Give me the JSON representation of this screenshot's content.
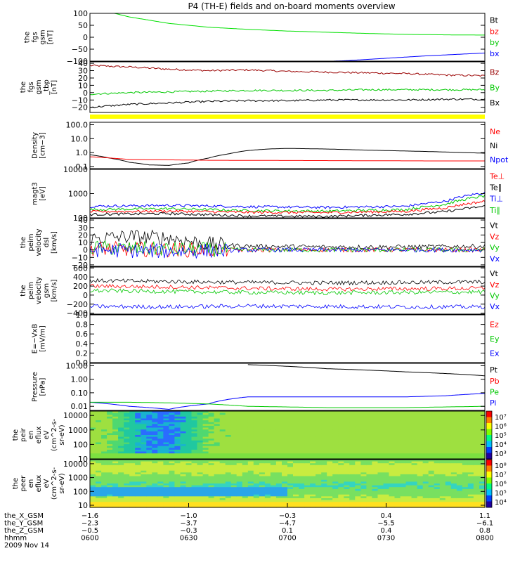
{
  "title": "P4 (TH-E) fields and on-board moments overview",
  "colors": {
    "black": "#000000",
    "red": "#ff0000",
    "dark_red": "#9a0000",
    "green": "#00c800",
    "bright_green": "#00e000",
    "blue": "#0000ff",
    "yellow": "#ffff00"
  },
  "chart_data": [
    {
      "type": "line",
      "ylabel": [
        "the",
        "fgs",
        "gsm",
        "[nT]"
      ],
      "yticks": [
        "100",
        "50",
        "0",
        "−50",
        "−100"
      ],
      "ylim": [
        -100,
        100
      ],
      "legend": [
        {
          "text": "Bt",
          "color": "#000000"
        },
        {
          "text": "bz",
          "color": "#ff0000"
        },
        {
          "text": "by",
          "color": "#00c800"
        },
        {
          "text": "bx",
          "color": "#0000ff"
        }
      ],
      "series": [
        {
          "name": "by",
          "color": "#00e000",
          "x": [
            0,
            0.1,
            0.2,
            0.3,
            0.4,
            0.5,
            0.6,
            0.7,
            0.8,
            0.9,
            1.0
          ],
          "y": [
            125,
            85,
            58,
            42,
            33,
            26,
            21,
            16,
            12,
            10,
            9
          ]
        },
        {
          "name": "bx",
          "color": "#0000ff",
          "x": [
            0.58,
            0.65,
            0.75,
            0.85,
            0.95,
            1.0
          ],
          "y": [
            -102,
            -98,
            -88,
            -78,
            -70,
            -66
          ]
        }
      ]
    },
    {
      "type": "line",
      "ylabel": [
        "the",
        "fgs",
        "gsm",
        "_tbp",
        "[nT]"
      ],
      "yticks": [
        "40",
        "30",
        "20",
        "10",
        "0",
        "−10",
        "−20"
      ],
      "ylim": [
        -27,
        42
      ],
      "legend": [
        {
          "text": "Bz",
          "color": "#9a0000"
        },
        {
          "text": "By",
          "color": "#00c800"
        },
        {
          "text": "Bx",
          "color": "#000000"
        }
      ],
      "series": [
        {
          "name": "Bz",
          "color": "#9a0000",
          "x": [
            0,
            0.1,
            0.2,
            0.3,
            0.4,
            0.5,
            0.6,
            0.7,
            0.8,
            0.9,
            1.0
          ],
          "y": [
            37,
            35,
            32,
            30,
            31,
            29,
            28,
            27,
            26,
            24,
            23
          ]
        },
        {
          "name": "By",
          "color": "#00c800",
          "x": [
            0,
            0.1,
            0.2,
            0.3,
            0.4,
            0.5,
            0.6,
            0.7,
            0.8,
            0.9,
            1.0
          ],
          "y": [
            -2,
            0,
            1,
            2,
            3,
            3,
            3,
            4,
            4,
            4,
            4
          ]
        },
        {
          "name": "Bx",
          "color": "#000000",
          "x": [
            0,
            0.1,
            0.2,
            0.3,
            0.4,
            0.5,
            0.6,
            0.7,
            0.8,
            0.9,
            1.0
          ],
          "y": [
            -20,
            -16,
            -14,
            -12,
            -11,
            -11,
            -10,
            -10,
            -10,
            -9,
            -9
          ]
        }
      ],
      "flag_bar": "#ffff00"
    },
    {
      "type": "line",
      "ylabel": [
        "Density",
        "[cm−3]"
      ],
      "yticks": [
        "100.0",
        "10.0",
        "1.0",
        "0.1"
      ],
      "yscale": "log",
      "ylim": [
        0.07,
        150
      ],
      "legend": [
        {
          "text": "Ne",
          "color": "#ff0000"
        },
        {
          "text": "Ni",
          "color": "#000000"
        },
        {
          "text": "Npot",
          "color": "#0000ff"
        }
      ],
      "series": [
        {
          "name": "Ni",
          "color": "#000000",
          "x": [
            0,
            0.05,
            0.1,
            0.15,
            0.2,
            0.25,
            0.3,
            0.35,
            0.4,
            0.45,
            0.5,
            0.6,
            0.7,
            0.8,
            0.9,
            1.0
          ],
          "y": [
            0.7,
            0.4,
            0.2,
            0.13,
            0.12,
            0.18,
            0.4,
            0.8,
            1.4,
            1.8,
            2.0,
            1.8,
            1.5,
            1.3,
            1.1,
            0.9
          ]
        },
        {
          "name": "Ne",
          "color": "#ff0000",
          "x": [
            0,
            0.1,
            0.2,
            0.3,
            0.5,
            0.7,
            0.9,
            1.0
          ],
          "y": [
            0.5,
            0.32,
            0.3,
            0.28,
            0.27,
            0.26,
            0.25,
            0.25
          ]
        }
      ]
    },
    {
      "type": "line",
      "ylabel": [
        "magt3",
        "[eV]"
      ],
      "yticks": [
        "10000",
        "1000",
        "100"
      ],
      "yscale": "log",
      "ylim": [
        100,
        10000
      ],
      "legend": [
        {
          "text": "Te⊥",
          "color": "#ff0000"
        },
        {
          "text": "Te∥",
          "color": "#000000"
        },
        {
          "text": "Ti⊥",
          "color": "#0000ff"
        },
        {
          "text": "Ti∥",
          "color": "#00c800"
        }
      ],
      "series": [
        {
          "name": "Ti⊥",
          "color": "#0000ff",
          "x": [
            0,
            0.2,
            0.4,
            0.6,
            0.8,
            0.9,
            1.0
          ],
          "y": [
            300,
            330,
            290,
            270,
            300,
            480,
            1100
          ]
        },
        {
          "name": "Ti∥",
          "color": "#00c800",
          "x": [
            0,
            0.2,
            0.4,
            0.6,
            0.8,
            0.9,
            1.0
          ],
          "y": [
            220,
            240,
            200,
            190,
            220,
            360,
            800
          ]
        },
        {
          "name": "Te⊥",
          "color": "#ff0000",
          "x": [
            0,
            0.2,
            0.4,
            0.6,
            0.8,
            0.9,
            1.0
          ],
          "y": [
            180,
            190,
            170,
            165,
            185,
            260,
            480
          ]
        },
        {
          "name": "Te∥",
          "color": "#000000",
          "x": [
            0,
            0.2,
            0.4,
            0.6,
            0.8,
            0.9,
            1.0
          ],
          "y": [
            140,
            150,
            120,
            115,
            140,
            180,
            300
          ]
        }
      ]
    },
    {
      "type": "line",
      "ylabel": [
        "the",
        "peim",
        "velocity",
        "dsl",
        "[km/s]"
      ],
      "yticks": [
        "40",
        "30",
        "20",
        "10",
        "0",
        "−10",
        "−20"
      ],
      "ylim": [
        -22,
        42
      ],
      "legend": [
        {
          "text": "Vt",
          "color": "#000000"
        },
        {
          "text": "Vz",
          "color": "#ff0000"
        },
        {
          "text": "Vy",
          "color": "#00c800"
        },
        {
          "text": "Vx",
          "color": "#0000ff"
        }
      ],
      "series": [
        {
          "name": "Vt",
          "color": "#000000",
          "x": [
            0,
            0.1,
            0.2,
            0.3,
            0.4,
            0.6,
            0.8,
            1.0
          ],
          "y": [
            15,
            18,
            16,
            8,
            5,
            4,
            4,
            5
          ]
        },
        {
          "name": "Vz",
          "color": "#ff0000",
          "x": [
            0,
            0.2,
            0.4,
            0.6,
            0.8,
            1.0
          ],
          "y": [
            2,
            0,
            0,
            0,
            0,
            0
          ]
        },
        {
          "name": "Vy",
          "color": "#00c800",
          "x": [
            0,
            0.2,
            0.4,
            0.6,
            0.8,
            1.0
          ],
          "y": [
            3,
            1,
            0,
            0,
            0,
            0
          ]
        },
        {
          "name": "Vx",
          "color": "#0000ff",
          "x": [
            0,
            0.2,
            0.4,
            0.6,
            0.8,
            1.0
          ],
          "y": [
            0,
            -2,
            0,
            0,
            0,
            0
          ]
        }
      ]
    },
    {
      "type": "line",
      "ylabel": [
        "the",
        "peim",
        "velocity",
        "gsm",
        "[km/s]"
      ],
      "yticks": [
        "600",
        "400",
        "200",
        "0",
        "−200",
        "−400"
      ],
      "ylim": [
        -420,
        620
      ],
      "legend": [
        {
          "text": "Vt",
          "color": "#000000"
        },
        {
          "text": "Vz",
          "color": "#ff0000"
        },
        {
          "text": "Vy",
          "color": "#00c800"
        },
        {
          "text": "Vx",
          "color": "#0000ff"
        }
      ],
      "series": [
        {
          "name": "Vt",
          "color": "#000000",
          "x": [
            0,
            0.2,
            0.4,
            0.6,
            0.8,
            1.0
          ],
          "y": [
            320,
            300,
            280,
            270,
            280,
            290
          ]
        },
        {
          "name": "Vz",
          "color": "#ff0000",
          "x": [
            0,
            0.2,
            0.4,
            0.6,
            0.8,
            1.0
          ],
          "y": [
            200,
            180,
            150,
            130,
            140,
            150
          ]
        },
        {
          "name": "Vy",
          "color": "#00c800",
          "x": [
            0,
            0.2,
            0.4,
            0.6,
            0.8,
            1.0
          ],
          "y": [
            100,
            80,
            60,
            50,
            60,
            70
          ]
        },
        {
          "name": "Vx",
          "color": "#0000ff",
          "x": [
            0,
            0.2,
            0.4,
            0.6,
            0.8,
            1.0
          ],
          "y": [
            -250,
            -260,
            -240,
            -250,
            -260,
            -260
          ]
        }
      ]
    },
    {
      "type": "line",
      "ylabel": [
        "E=−VxB",
        "[mV/m]"
      ],
      "yticks": [
        "1.0",
        "0.8",
        "0.6",
        "0.4",
        "0.2",
        "0.0"
      ],
      "ylim": [
        0,
        1
      ],
      "legend": [
        {
          "text": "Ez",
          "color": "#ff0000"
        },
        {
          "text": "Ey",
          "color": "#00c800"
        },
        {
          "text": "Ex",
          "color": "#0000ff"
        }
      ],
      "series": []
    },
    {
      "type": "line",
      "ylabel": [
        "Pressure",
        "[nPa]"
      ],
      "yticks": [
        "10.00",
        "1.00",
        "0.10",
        "0.01"
      ],
      "yscale": "log",
      "ylim": [
        0.005,
        15
      ],
      "legend": [
        {
          "text": "Pt",
          "color": "#000000"
        },
        {
          "text": "Pb",
          "color": "#ff0000"
        },
        {
          "text": "Pe",
          "color": "#00c800"
        },
        {
          "text": "Pi",
          "color": "#0000ff"
        }
      ],
      "series": [
        {
          "name": "Pt",
          "color": "#000000",
          "x": [
            0.4,
            0.6,
            0.8,
            1.0
          ],
          "y": [
            12,
            6,
            3.5,
            1.8
          ]
        },
        {
          "name": "Pi",
          "color": "#0000ff",
          "x": [
            0,
            0.1,
            0.2,
            0.3,
            0.4,
            0.5,
            0.6,
            0.7,
            0.8,
            0.9,
            1.0
          ],
          "y": [
            0.02,
            0.01,
            0.006,
            0.015,
            0.05,
            0.05,
            0.05,
            0.05,
            0.05,
            0.06,
            0.09
          ]
        },
        {
          "name": "Pe",
          "color": "#00c800",
          "x": [
            0,
            0.1,
            0.2,
            0.3,
            0.4,
            0.6,
            0.8,
            1.0
          ],
          "y": [
            0.02,
            0.02,
            0.018,
            0.015,
            0.01,
            0.008,
            0.008,
            0.01
          ]
        }
      ]
    },
    {
      "type": "heatmap",
      "ylabel": [
        "the",
        "peir",
        "en",
        "eflux",
        "eV",
        "(cm^2-s-",
        "sr-eV)"
      ],
      "yticks": [
        "10000",
        "1000",
        "100",
        "10"
      ],
      "yscale": "log",
      "ylim": [
        10,
        20000
      ],
      "colorbar_ticks": [
        "10⁷",
        "10⁶",
        "10⁵",
        "10⁴",
        "10³"
      ]
    },
    {
      "type": "heatmap",
      "ylabel": [
        "the",
        "peer",
        "en",
        "eflux",
        "eV",
        "(cm^2-s-",
        "sr-eV)"
      ],
      "yticks": [
        "10000",
        "1000",
        "100",
        "10"
      ],
      "yscale": "log",
      "ylim": [
        7,
        20000
      ],
      "colorbar_ticks": [
        "10⁸",
        "10⁷",
        "10⁶",
        "10⁵",
        "10⁴"
      ]
    }
  ],
  "xaxis": {
    "row_labels": [
      "the_X_GSM",
      "the_Y_GSM",
      "the_Z_GSM",
      "hhmm",
      "2009 Nov 14"
    ],
    "ticks": [
      {
        "x": 0,
        "values": [
          "−1.6",
          "−2.3",
          "−0.5",
          "0600"
        ]
      },
      {
        "x": 0.25,
        "values": [
          "−1.0",
          "−3.7",
          "−0.3",
          "0630"
        ]
      },
      {
        "x": 0.5,
        "values": [
          "−0.3",
          "−4.7",
          "0.1",
          "0700"
        ]
      },
      {
        "x": 0.75,
        "values": [
          "0.4",
          "−5.5",
          "0.4",
          "0730"
        ]
      },
      {
        "x": 1,
        "values": [
          "1.1",
          "−6.1",
          "0.8",
          "0800"
        ]
      }
    ]
  }
}
